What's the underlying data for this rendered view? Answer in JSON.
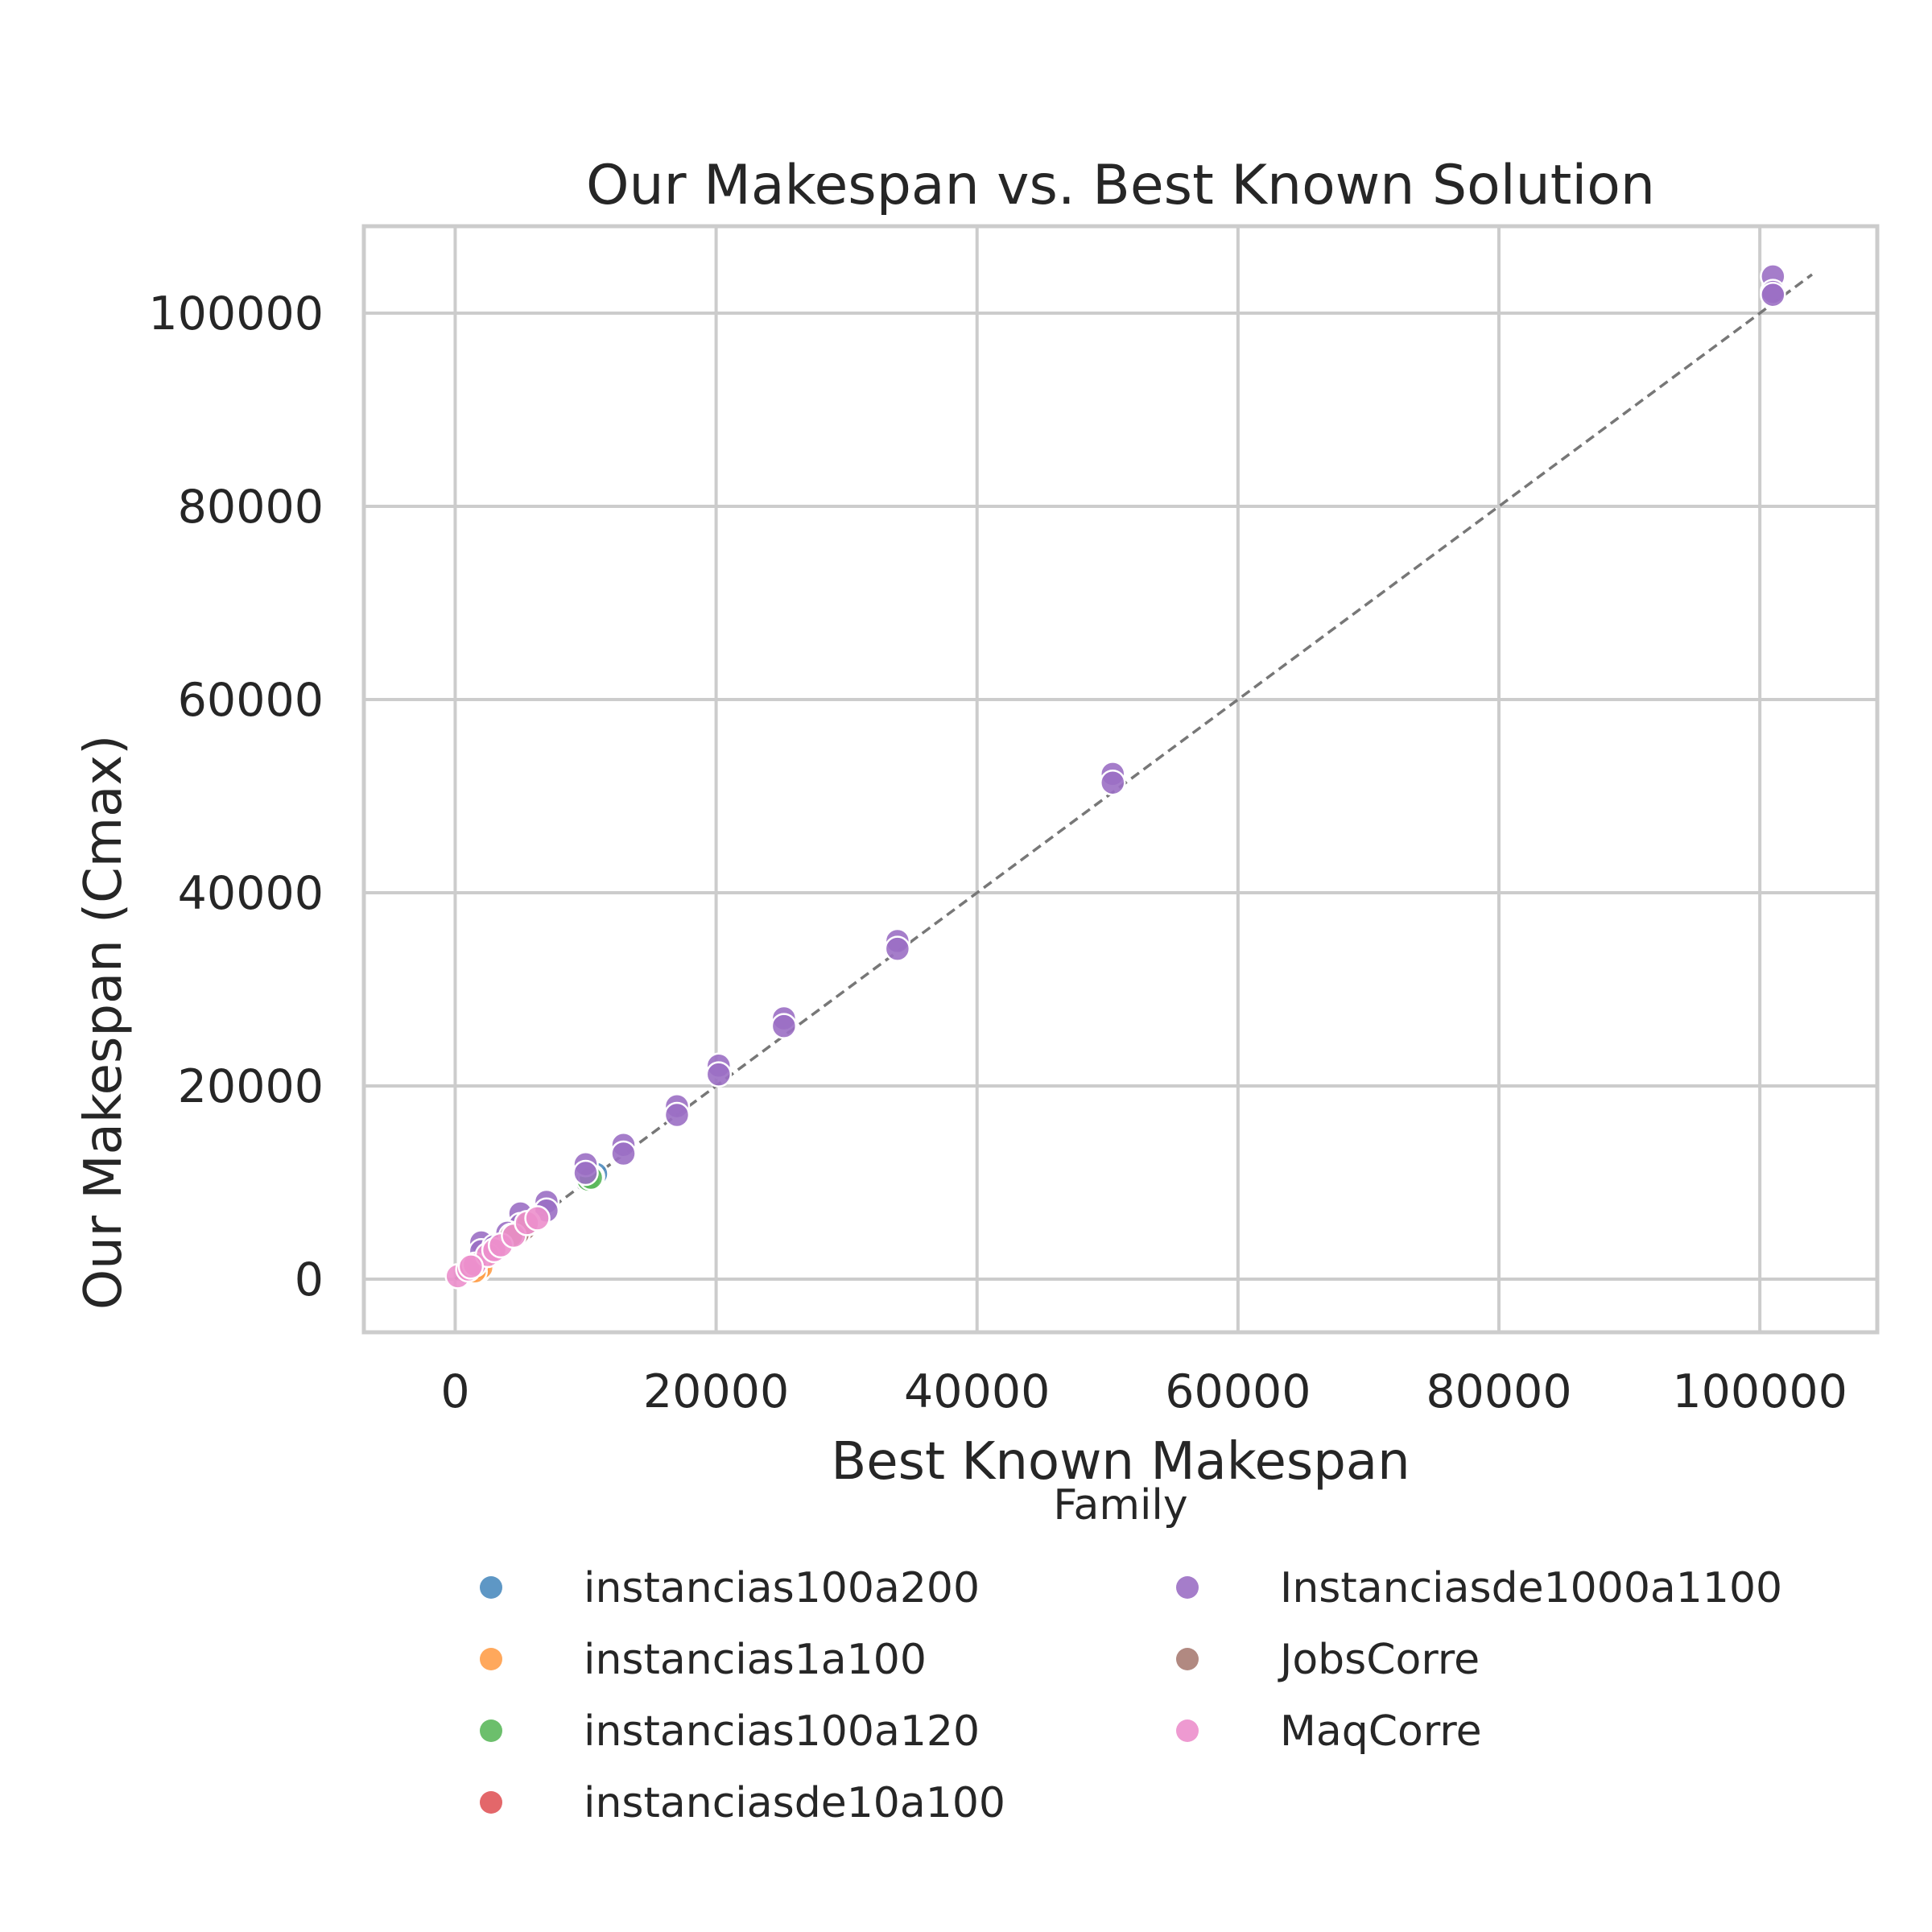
{
  "chart_data": {
    "type": "scatter",
    "title": "Our Makespan vs. Best Known Solution",
    "xlabel": "Best Known Makespan",
    "ylabel": "Our Makespan (Cmax)",
    "xlim": [
      -7000,
      109000
    ],
    "ylim": [
      -5500,
      109000
    ],
    "xticks": [
      0,
      20000,
      40000,
      60000,
      80000,
      100000
    ],
    "yticks": [
      0,
      20000,
      40000,
      60000,
      80000,
      100000
    ],
    "xtick_labels": [
      "0",
      "20000",
      "40000",
      "60000",
      "80000",
      "100000"
    ],
    "ytick_labels": [
      "0",
      "20000",
      "40000",
      "60000",
      "80000",
      "100000"
    ],
    "grid": true,
    "reference_line": {
      "style": "dashed",
      "color": "#777777",
      "from": [
        0,
        0
      ],
      "to": [
        104000,
        104000
      ]
    },
    "legend": {
      "title": "Family",
      "placement": "bottom-center",
      "columns": 2
    },
    "series": [
      {
        "name": "instancias100a200",
        "color": "#4c8cbf",
        "points": [
          [
            10800,
            10900
          ],
          [
            10500,
            10600
          ]
        ]
      },
      {
        "name": "instancias1a100",
        "color": "#ff9e4a",
        "points": [
          [
            1800,
            900
          ],
          [
            2000,
            1200
          ],
          [
            1500,
            800
          ]
        ]
      },
      {
        "name": "instancias100a120",
        "color": "#5cb85c",
        "points": [
          [
            10200,
            10300
          ],
          [
            10400,
            10500
          ]
        ]
      },
      {
        "name": "instanciasde10a100",
        "color": "#e0575a",
        "points": [
          [
            1200,
            1300
          ],
          [
            1600,
            1700
          ]
        ]
      },
      {
        "name": "Instanciasde1000a1100",
        "color": "#9b6fc4",
        "points": [
          [
            101000,
            103800
          ],
          [
            101000,
            102200
          ],
          [
            101000,
            101900
          ],
          [
            50400,
            52300
          ],
          [
            50400,
            51400
          ],
          [
            33900,
            35000
          ],
          [
            33900,
            34200
          ],
          [
            25200,
            27000
          ],
          [
            25200,
            26200
          ],
          [
            20200,
            22100
          ],
          [
            20200,
            21200
          ],
          [
            17000,
            17900
          ],
          [
            17000,
            17000
          ],
          [
            12900,
            13900
          ],
          [
            12900,
            13000
          ],
          [
            10000,
            11900
          ],
          [
            10000,
            11000
          ],
          [
            7000,
            8000
          ],
          [
            7000,
            7100
          ],
          [
            5000,
            6800
          ],
          [
            5000,
            5600
          ],
          [
            4000,
            4800
          ],
          [
            2000,
            3800
          ],
          [
            2000,
            2900
          ],
          [
            3000,
            3400
          ]
        ]
      },
      {
        "name": "JobsCorre",
        "color": "#a87c73",
        "points": [
          [
            5300,
            5200
          ],
          [
            4800,
            4700
          ],
          [
            5600,
            5800
          ],
          [
            4300,
            4500
          ]
        ]
      },
      {
        "name": "MaqCorre",
        "color": "#ec8fcc",
        "points": [
          [
            200,
            300
          ],
          [
            1000,
            1000
          ],
          [
            1500,
            1500
          ],
          [
            2500,
            2500
          ],
          [
            3000,
            3000
          ],
          [
            3500,
            3500
          ],
          [
            4500,
            4500
          ],
          [
            5500,
            5800
          ],
          [
            6300,
            6300
          ],
          [
            1200,
            1300
          ]
        ]
      }
    ]
  }
}
